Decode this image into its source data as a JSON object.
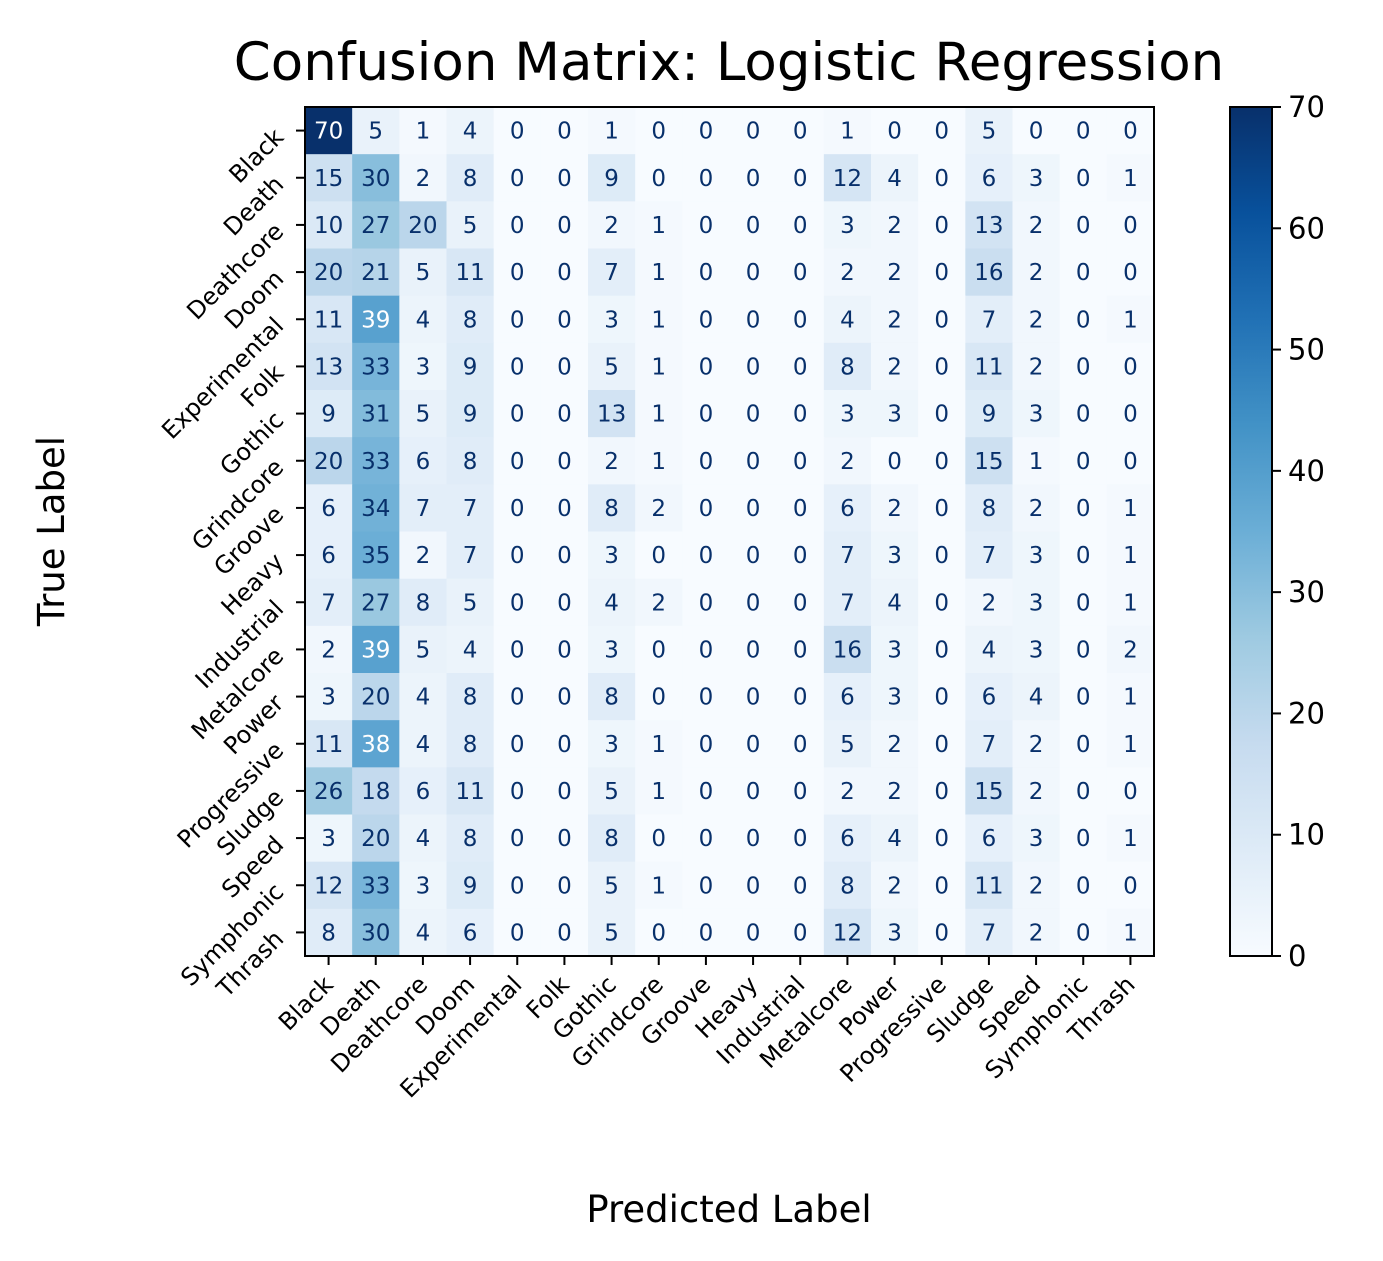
{
  "chart_data": {
    "type": "heatmap",
    "title": "Confusion Matrix: Logistic Regression",
    "xlabel": "Predicted Label",
    "ylabel": "True Label",
    "colormap": "Blues",
    "color_low": "#f7fbff",
    "color_high": "#08306b",
    "vmin": 0,
    "vmax": 70,
    "colorbar_ticks": [
      0,
      10,
      20,
      30,
      40,
      50,
      60,
      70
    ],
    "colorbar_ticks_text": [
      "0",
      "10",
      "20",
      "30",
      "40",
      "50",
      "60",
      "70"
    ],
    "labels": [
      "Black",
      "Death",
      "Deathcore",
      "Doom",
      "Experimental",
      "Folk",
      "Gothic",
      "Grindcore",
      "Groove",
      "Heavy",
      "Industrial",
      "Metalcore",
      "Power",
      "Progressive",
      "Sludge",
      "Speed",
      "Symphonic",
      "Thrash"
    ],
    "matrix": [
      [
        70,
        5,
        1,
        4,
        0,
        0,
        1,
        0,
        0,
        0,
        0,
        1,
        0,
        0,
        5,
        0,
        0,
        0
      ],
      [
        15,
        30,
        2,
        8,
        0,
        0,
        9,
        0,
        0,
        0,
        0,
        12,
        4,
        0,
        6,
        3,
        0,
        1
      ],
      [
        10,
        27,
        20,
        5,
        0,
        0,
        2,
        1,
        0,
        0,
        0,
        3,
        2,
        0,
        13,
        2,
        0,
        0
      ],
      [
        20,
        21,
        5,
        11,
        0,
        0,
        7,
        1,
        0,
        0,
        0,
        2,
        2,
        0,
        16,
        2,
        0,
        0
      ],
      [
        11,
        39,
        4,
        8,
        0,
        0,
        3,
        1,
        0,
        0,
        0,
        4,
        2,
        0,
        7,
        2,
        0,
        1
      ],
      [
        13,
        33,
        3,
        9,
        0,
        0,
        5,
        1,
        0,
        0,
        0,
        8,
        2,
        0,
        11,
        2,
        0,
        0
      ],
      [
        9,
        31,
        5,
        9,
        0,
        0,
        13,
        1,
        0,
        0,
        0,
        3,
        3,
        0,
        9,
        3,
        0,
        0
      ],
      [
        20,
        33,
        6,
        8,
        0,
        0,
        2,
        1,
        0,
        0,
        0,
        2,
        0,
        0,
        15,
        1,
        0,
        0
      ],
      [
        6,
        34,
        7,
        7,
        0,
        0,
        8,
        2,
        0,
        0,
        0,
        6,
        2,
        0,
        8,
        2,
        0,
        1
      ],
      [
        6,
        35,
        2,
        7,
        0,
        0,
        3,
        0,
        0,
        0,
        0,
        7,
        3,
        0,
        7,
        3,
        0,
        1
      ],
      [
        7,
        27,
        8,
        5,
        0,
        0,
        4,
        2,
        0,
        0,
        0,
        7,
        4,
        0,
        2,
        3,
        0,
        1
      ],
      [
        2,
        39,
        5,
        4,
        0,
        0,
        3,
        0,
        0,
        0,
        0,
        16,
        3,
        0,
        4,
        3,
        0,
        2
      ],
      [
        3,
        20,
        4,
        8,
        0,
        0,
        8,
        0,
        0,
        0,
        0,
        6,
        3,
        0,
        6,
        4,
        0,
        1
      ],
      [
        11,
        38,
        4,
        8,
        0,
        0,
        3,
        1,
        0,
        0,
        0,
        5,
        2,
        0,
        7,
        2,
        0,
        1
      ],
      [
        26,
        18,
        6,
        11,
        0,
        0,
        5,
        1,
        0,
        0,
        0,
        2,
        2,
        0,
        15,
        2,
        0,
        0
      ],
      [
        3,
        20,
        4,
        8,
        0,
        0,
        8,
        0,
        0,
        0,
        0,
        6,
        4,
        0,
        6,
        3,
        0,
        1
      ],
      [
        12,
        33,
        3,
        9,
        0,
        0,
        5,
        1,
        0,
        0,
        0,
        8,
        2,
        0,
        11,
        2,
        0,
        0
      ],
      [
        8,
        30,
        4,
        6,
        0,
        0,
        5,
        0,
        0,
        0,
        0,
        12,
        3,
        0,
        7,
        2,
        0,
        1
      ]
    ]
  }
}
